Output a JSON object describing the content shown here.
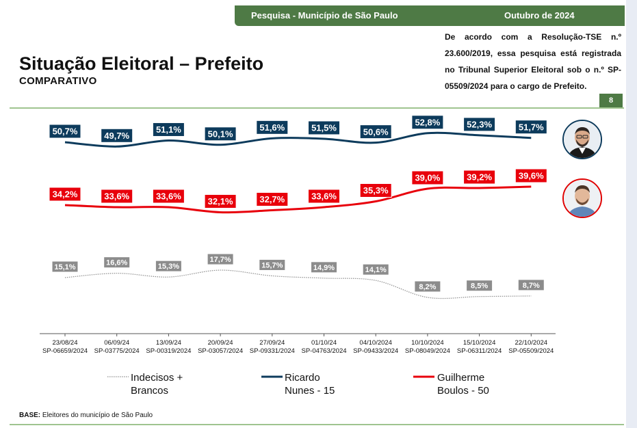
{
  "header": {
    "left": "Pesquisa - Município de São Paulo",
    "right": "Outubro de 2024"
  },
  "title": "Situação Eleitoral – Prefeito",
  "subtitle": "COMPARATIVO",
  "note": "De acordo com a Resolução-TSE n.º 23.600/2019, essa pesquisa está registrada no Tribunal Superior Eleitoral sob o n.º SP-05509/2024 para o cargo de Prefeito.",
  "page_number": "8",
  "base": {
    "label": "BASE:",
    "text": " Eleitores do município de São Paulo"
  },
  "legend": [
    {
      "line1": "Indecisos +",
      "line2": "Brancos"
    },
    {
      "line1": "Ricardo",
      "line2": "Nunes - 15"
    },
    {
      "line1": "Guilherme",
      "line2": "Boulos - 50"
    }
  ],
  "colors": {
    "nunes": "#0d3b5c",
    "boulos": "#e8000b",
    "indecisos": "#8c8c8c",
    "accent": "#4e7a45"
  },
  "chart_data": {
    "type": "line",
    "x": [
      {
        "date": "23/08/24",
        "reg": "SP-06659/2024"
      },
      {
        "date": "06/09/24",
        "reg": "SP-03775/2024"
      },
      {
        "date": "13/09/24",
        "reg": "SP-00319/2024"
      },
      {
        "date": "20/09/24",
        "reg": "SP-03057/2024"
      },
      {
        "date": "27/09/24",
        "reg": "SP-09331/2024"
      },
      {
        "date": "01/10/24",
        "reg": "SP-04763/2024"
      },
      {
        "date": "04/10/2024",
        "reg": "SP-09433/2024"
      },
      {
        "date": "10/10/2024",
        "reg": "SP-08049/2024"
      },
      {
        "date": "15/10/2024",
        "reg": "SP-06311/2024"
      },
      {
        "date": "22/10/2024",
        "reg": "SP-05509/2024"
      }
    ],
    "series": [
      {
        "name": "Ricardo Nunes - 15",
        "key": "nunes",
        "values": [
          50.7,
          49.7,
          51.1,
          50.1,
          51.6,
          51.5,
          50.6,
          52.8,
          52.3,
          51.7
        ],
        "labels": [
          "50,7%",
          "49,7%",
          "51,1%",
          "50,1%",
          "51,6%",
          "51,5%",
          "50,6%",
          "52,8%",
          "52,3%",
          "51,7%"
        ]
      },
      {
        "name": "Guilherme Boulos - 50",
        "key": "boulos",
        "values": [
          34.2,
          33.6,
          33.6,
          32.1,
          32.7,
          33.6,
          35.3,
          39.0,
          39.2,
          39.6
        ],
        "labels": [
          "34,2%",
          "33,6%",
          "33,6%",
          "32,1%",
          "32,7%",
          "33,6%",
          "35,3%",
          "39,0%",
          "39,2%",
          "39,6%"
        ]
      },
      {
        "name": "Indecisos + Brancos",
        "key": "indecisos",
        "values": [
          15.1,
          16.6,
          15.3,
          17.7,
          15.7,
          14.9,
          14.1,
          8.2,
          8.5,
          8.7
        ],
        "labels": [
          "15,1%",
          "16,6%",
          "15,3%",
          "17,7%",
          "15,7%",
          "14,9%",
          "14,1%",
          "8,2%",
          "8,5%",
          "8,7%"
        ]
      }
    ]
  }
}
